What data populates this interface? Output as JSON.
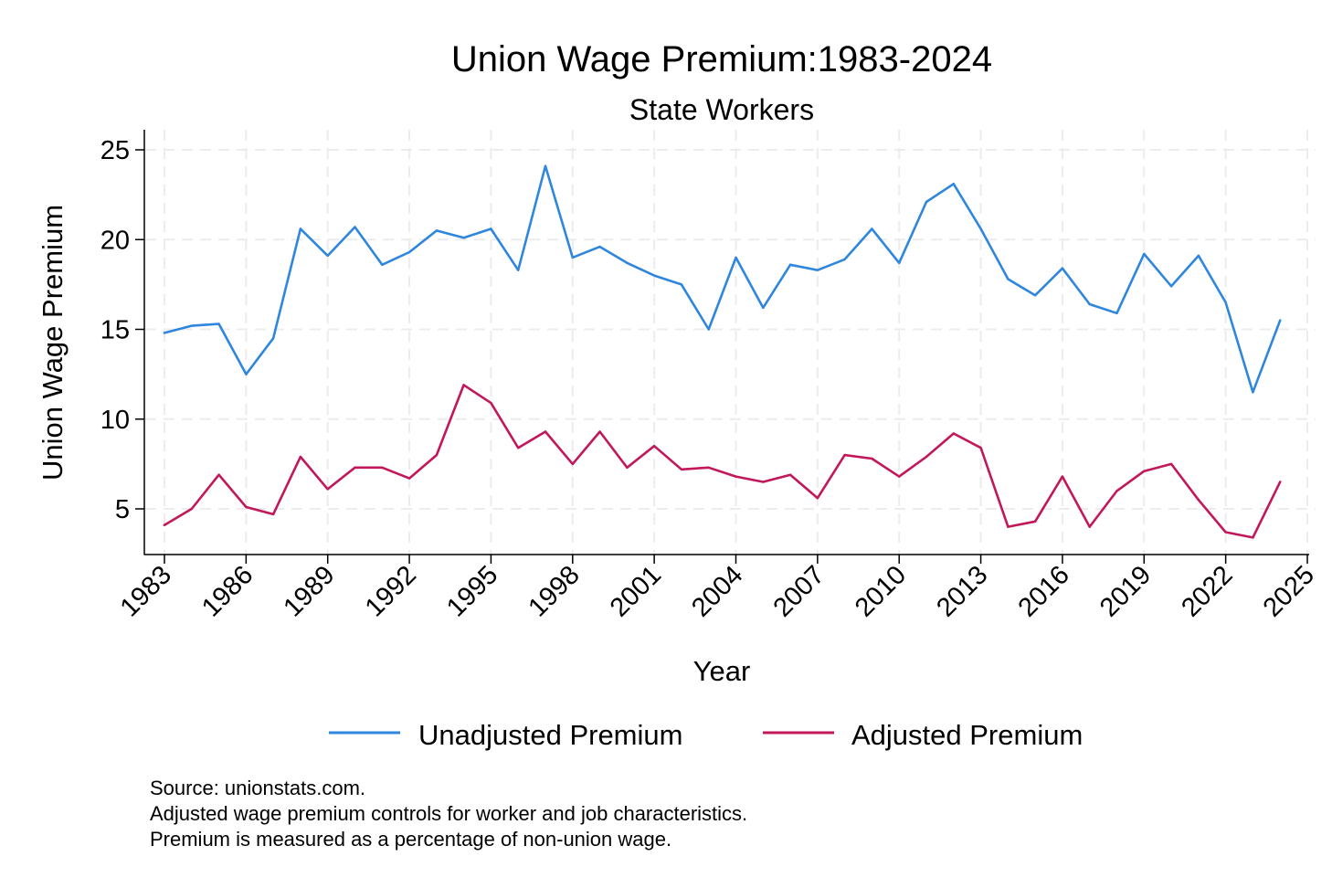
{
  "chart_data": {
    "type": "line",
    "title": "Union Wage Premium:1983-2024",
    "subtitle": "State Workers",
    "xlabel": "Year",
    "ylabel": "Union Wage Premium",
    "xlim": [
      1983,
      2025
    ],
    "ylim": [
      2.5,
      26
    ],
    "x_ticks": [
      1983,
      1986,
      1989,
      1992,
      1995,
      1998,
      2001,
      2004,
      2007,
      2010,
      2013,
      2016,
      2019,
      2022,
      2025
    ],
    "y_ticks": [
      5,
      10,
      15,
      20,
      25
    ],
    "grid": true,
    "legend_position": "bottom",
    "x": [
      1983,
      1984,
      1985,
      1986,
      1987,
      1988,
      1989,
      1990,
      1991,
      1992,
      1993,
      1994,
      1995,
      1996,
      1997,
      1998,
      1999,
      2000,
      2001,
      2002,
      2003,
      2004,
      2005,
      2006,
      2007,
      2008,
      2009,
      2010,
      2011,
      2012,
      2013,
      2014,
      2015,
      2016,
      2017,
      2018,
      2019,
      2020,
      2021,
      2022,
      2023,
      2024
    ],
    "series": [
      {
        "name": "Unadjusted Premium",
        "color": "#2e86de",
        "values": [
          14.8,
          15.2,
          15.3,
          12.5,
          14.5,
          20.6,
          19.1,
          20.7,
          18.6,
          19.3,
          20.5,
          20.1,
          20.6,
          18.3,
          24.1,
          19.0,
          19.6,
          18.7,
          18.0,
          17.5,
          15.0,
          19.0,
          16.2,
          18.6,
          18.3,
          18.9,
          20.6,
          18.7,
          22.1,
          23.1,
          20.6,
          17.8,
          16.9,
          18.4,
          16.4,
          15.9,
          19.2,
          17.4,
          19.1,
          16.5,
          11.5,
          15.5
        ]
      },
      {
        "name": "Adjusted Premium",
        "color": "#c2185b",
        "values": [
          4.1,
          5.0,
          6.9,
          5.1,
          4.7,
          7.9,
          6.1,
          7.3,
          7.3,
          6.7,
          8.0,
          11.9,
          10.9,
          8.4,
          9.3,
          7.5,
          9.3,
          7.3,
          8.5,
          7.2,
          7.3,
          6.8,
          6.5,
          6.9,
          5.6,
          8.0,
          7.8,
          6.8,
          7.9,
          9.2,
          8.4,
          4.0,
          4.3,
          6.8,
          4.0,
          6.0,
          7.1,
          7.5,
          5.5,
          3.7,
          3.4,
          6.5
        ]
      }
    ],
    "notes": [
      "Source: unionstats.com.",
      "Adjusted wage premium controls for worker and job characteristics.",
      "Premium is measured as a percentage of non-union wage."
    ]
  }
}
